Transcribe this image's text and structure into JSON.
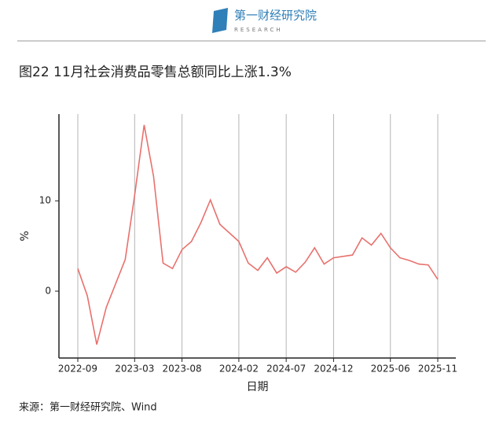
{
  "header": {
    "logo_text": "第一财经研究院",
    "logo_subtext": "RESEARCH"
  },
  "chart_data": {
    "type": "line",
    "title": "图22 11月社会消费品零售总额同比上涨1.3%",
    "x_label": "日期",
    "y_label": "%",
    "source": "来源：第一财经研究院、Wind",
    "x": [
      "2022-09",
      "2022-10",
      "2022-11",
      "2022-12",
      "2023-02",
      "2023-03",
      "2023-04",
      "2023-05",
      "2023-06",
      "2023-07",
      "2023-08",
      "2023-09",
      "2023-10",
      "2023-11",
      "2023-12",
      "2024-02",
      "2024-03",
      "2024-04",
      "2024-05",
      "2024-06",
      "2024-07",
      "2024-08",
      "2024-09",
      "2024-10",
      "2024-11",
      "2024-12",
      "2025-02",
      "2025-03",
      "2025-04",
      "2025-05",
      "2025-06",
      "2025-07",
      "2025-08",
      "2025-09",
      "2025-10",
      "2025-11"
    ],
    "values": [
      2.5,
      -0.5,
      -5.9,
      -1.8,
      3.5,
      10.6,
      18.4,
      12.7,
      3.1,
      2.5,
      4.6,
      5.5,
      7.6,
      10.1,
      7.4,
      5.5,
      3.1,
      2.3,
      3.7,
      2.0,
      2.7,
      2.1,
      3.2,
      4.8,
      3.0,
      3.7,
      4.0,
      5.9,
      5.1,
      6.4,
      4.8,
      3.7,
      3.4,
      3.0,
      2.9,
      1.3
    ],
    "color": "#e8716d",
    "xlim": [
      "2022-09",
      "2025-11"
    ],
    "xticks": [
      "2022-09",
      "2023-03",
      "2023-08",
      "2024-02",
      "2024-07",
      "2024-12",
      "2025-06",
      "2025-11"
    ],
    "ylim": [
      -7.4,
      19.6
    ],
    "yticks": [
      0,
      10
    ],
    "grid": true
  }
}
